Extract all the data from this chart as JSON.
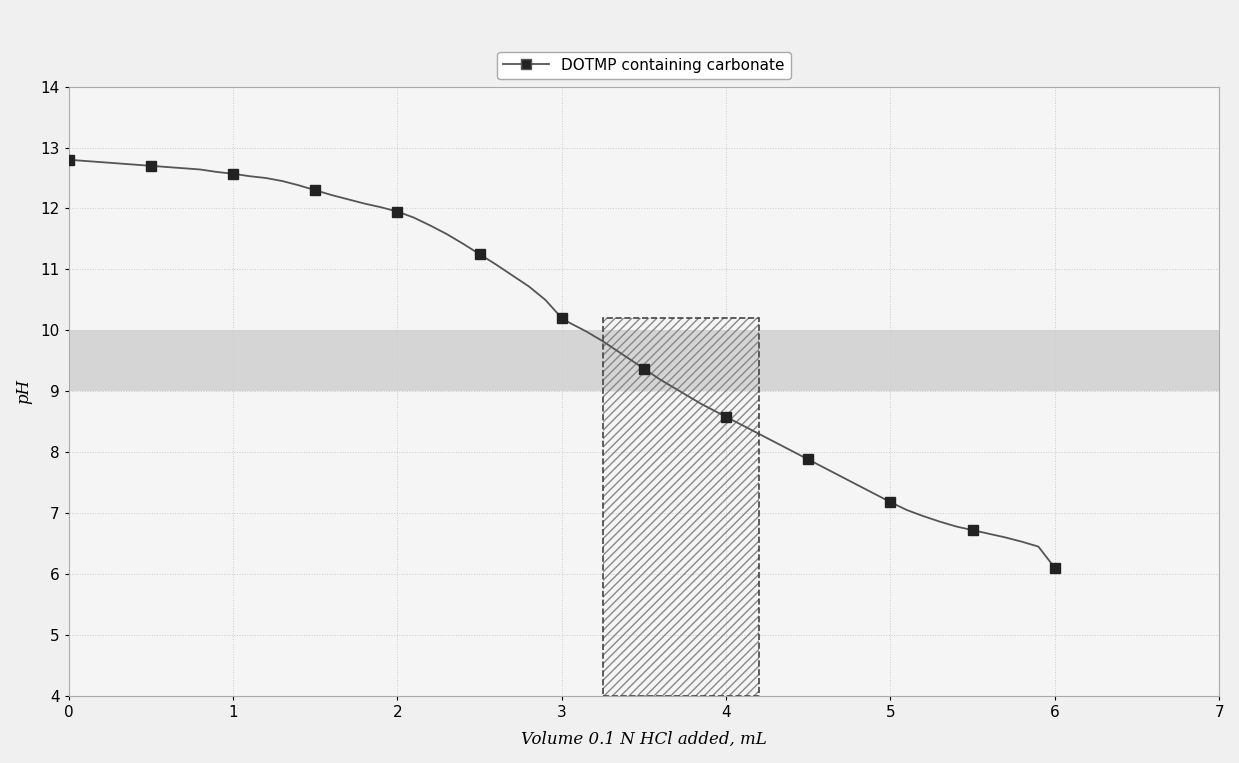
{
  "title": "DOTMP containing carbonate",
  "xlabel": "Volume 0.1 N HCl added, mL",
  "ylabel": "pH",
  "xlim": [
    0,
    7
  ],
  "ylim": [
    4,
    14
  ],
  "xticks": [
    0,
    1,
    2,
    3,
    4,
    5,
    6,
    7
  ],
  "yticks": [
    4,
    5,
    6,
    7,
    8,
    9,
    10,
    11,
    12,
    13,
    14
  ],
  "x_data": [
    0.0,
    0.1,
    0.2,
    0.3,
    0.4,
    0.5,
    0.6,
    0.7,
    0.8,
    0.9,
    1.0,
    1.1,
    1.2,
    1.3,
    1.4,
    1.5,
    1.6,
    1.7,
    1.8,
    1.9,
    2.0,
    2.1,
    2.2,
    2.3,
    2.4,
    2.5,
    2.6,
    2.7,
    2.8,
    2.9,
    3.0,
    3.05,
    3.1,
    3.15,
    3.2,
    3.25,
    3.3,
    3.35,
    3.4,
    3.45,
    3.5,
    3.55,
    3.6,
    3.65,
    3.7,
    3.75,
    3.8,
    3.85,
    3.9,
    3.95,
    4.0,
    4.05,
    4.1,
    4.15,
    4.2,
    4.25,
    4.3,
    4.35,
    4.4,
    4.45,
    4.5,
    4.55,
    4.6,
    4.65,
    4.7,
    4.75,
    4.8,
    4.85,
    4.9,
    4.95,
    5.0,
    5.1,
    5.2,
    5.3,
    5.4,
    5.5,
    5.6,
    5.7,
    5.8,
    5.9,
    6.0
  ],
  "y_data": [
    12.8,
    12.78,
    12.76,
    12.74,
    12.72,
    12.7,
    12.68,
    12.66,
    12.64,
    12.6,
    12.57,
    12.53,
    12.5,
    12.45,
    12.38,
    12.3,
    12.22,
    12.15,
    12.08,
    12.02,
    11.95,
    11.85,
    11.72,
    11.58,
    11.42,
    11.25,
    11.08,
    10.9,
    10.72,
    10.5,
    10.2,
    10.12,
    10.05,
    9.98,
    9.9,
    9.82,
    9.73,
    9.64,
    9.55,
    9.46,
    9.37,
    9.28,
    9.19,
    9.11,
    9.03,
    8.95,
    8.87,
    8.79,
    8.72,
    8.65,
    8.58,
    8.51,
    8.44,
    8.37,
    8.3,
    8.23,
    8.16,
    8.09,
    8.02,
    7.95,
    7.88,
    7.81,
    7.74,
    7.67,
    7.6,
    7.53,
    7.46,
    7.39,
    7.32,
    7.25,
    7.18,
    7.05,
    6.95,
    6.86,
    6.78,
    6.72,
    6.66,
    6.6,
    6.53,
    6.45,
    6.1
  ],
  "marker_x": [
    0.0,
    0.5,
    1.0,
    1.5,
    2.0,
    2.5,
    3.0,
    3.5,
    4.0,
    4.5,
    5.0,
    5.5,
    6.0
  ],
  "marker_y": [
    12.8,
    12.7,
    12.57,
    12.3,
    11.95,
    11.25,
    10.2,
    9.37,
    8.58,
    7.88,
    7.18,
    6.72,
    6.1
  ],
  "line_color": "#555555",
  "marker_color": "#222222",
  "marker_size": 7,
  "background_color": "#f0f0f0",
  "plot_bg_color": "#f5f5f5",
  "grid_color": "#cccccc",
  "shade_bg_y1": 9.0,
  "shade_bg_y2": 10.0,
  "rect_x1": 3.25,
  "rect_x2": 4.2,
  "rect_y1": 4.0,
  "rect_y2": 10.2,
  "hatch_color": "#999999",
  "legend_label": "DOTMP containing carbonate"
}
